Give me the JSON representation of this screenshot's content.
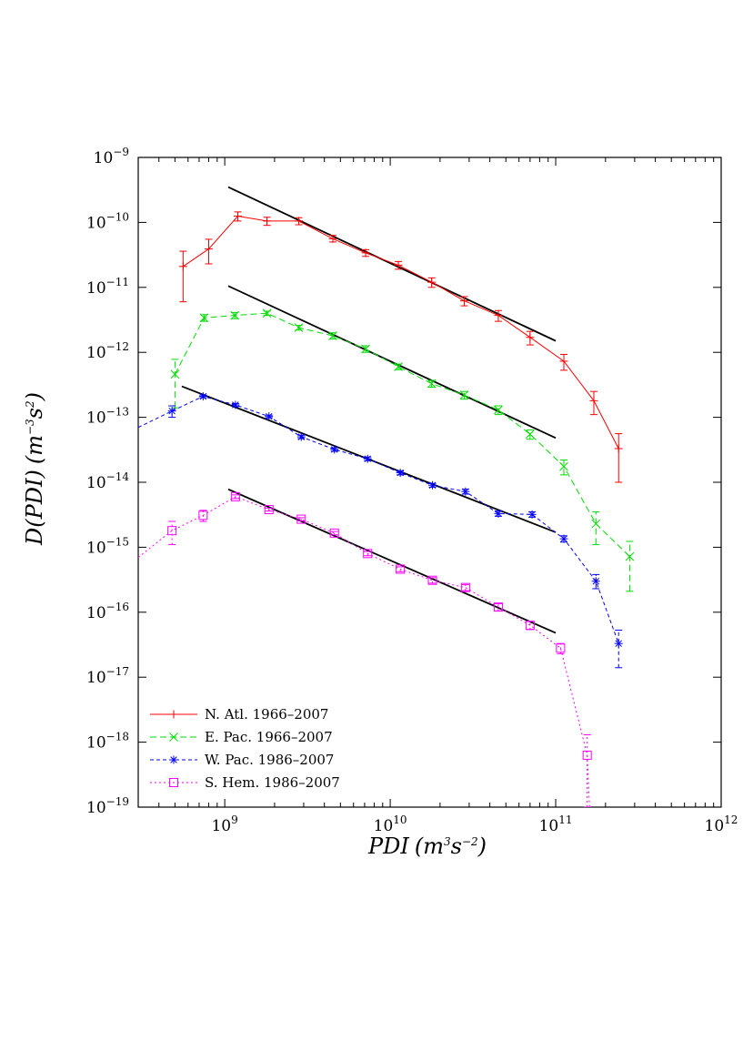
{
  "chart_data": {
    "type": "scatter",
    "title": "",
    "xlabel": {
      "base": "PDI",
      "unit_open": "(m",
      "unit_exp1": "3",
      "unit_mid": "s",
      "unit_exp2": "−2",
      "unit_close": ")"
    },
    "ylabel": {
      "base": "D(PDI)",
      "unit_open": "(m",
      "unit_exp1": "−3",
      "unit_mid": "s",
      "unit_exp2": "2",
      "unit_close": ")"
    },
    "x_scale": "log",
    "y_scale": "log",
    "xlim": [
      300000000.0,
      1000000000000.0
    ],
    "ylim": [
      1e-19,
      1e-09
    ],
    "x_ticks": [
      {
        "value": 1000000000.0,
        "base": "10",
        "exp": "9"
      },
      {
        "value": 10000000000.0,
        "base": "10",
        "exp": "10"
      },
      {
        "value": 100000000000.0,
        "base": "10",
        "exp": "11"
      },
      {
        "value": 1000000000000.0,
        "base": "10",
        "exp": "12"
      }
    ],
    "y_ticks": [
      {
        "value": 1e-09,
        "base": "10",
        "exp": "−9"
      },
      {
        "value": 1e-10,
        "base": "10",
        "exp": "−10"
      },
      {
        "value": 1e-11,
        "base": "10",
        "exp": "−11"
      },
      {
        "value": 1e-12,
        "base": "10",
        "exp": "−12"
      },
      {
        "value": 1e-13,
        "base": "10",
        "exp": "−13"
      },
      {
        "value": 1e-14,
        "base": "10",
        "exp": "−14"
      },
      {
        "value": 1e-15,
        "base": "10",
        "exp": "−15"
      },
      {
        "value": 1e-16,
        "base": "10",
        "exp": "−16"
      },
      {
        "value": 1e-17,
        "base": "10",
        "exp": "−17"
      },
      {
        "value": 1e-18,
        "base": "10",
        "exp": "−18"
      },
      {
        "value": 1e-19,
        "base": "10",
        "exp": "−19"
      }
    ],
    "legend_position": "bottom-left",
    "grid": false,
    "series": [
      {
        "name": "N. Atl. 1966–2007",
        "color": "#ff0000",
        "marker": "plus",
        "dash": "",
        "x": [
          560000000.0,
          800000000.0,
          1200000000.0,
          1800000000.0,
          2800000000.0,
          4500000000.0,
          7100000000.0,
          11200000000.0,
          17800000000.0,
          28000000000.0,
          45000000000.0,
          70000000000.0,
          112000000000.0,
          170000000000.0,
          240000000000.0
        ],
        "y": [
          2.1e-11,
          3.9e-11,
          1.25e-10,
          1.05e-10,
          1.05e-10,
          5.6e-11,
          3.4e-11,
          2.2e-11,
          1.2e-11,
          6.2e-12,
          3.7e-12,
          1.7e-12,
          7.3e-13,
          1.8e-13,
          3.3e-14
        ],
        "err_lo": [
          6e-12,
          2.3e-11,
          1.05e-10,
          9e-11,
          9.2e-11,
          5e-11,
          3e-11,
          1.9e-11,
          1e-11,
          5.2e-12,
          3e-12,
          1.3e-12,
          5.3e-13,
          1.1e-13,
          1e-14
        ],
        "err_hi": [
          3.6e-11,
          5.5e-11,
          1.45e-10,
          1.2e-10,
          1.18e-10,
          6.3e-11,
          3.8e-11,
          2.5e-11,
          1.4e-11,
          7.2e-12,
          4.4e-12,
          2.1e-12,
          9.3e-13,
          2.5e-13,
          5.6e-14
        ]
      },
      {
        "name": "E. Pac. 1966–2007",
        "color": "#00dd00",
        "marker": "cross",
        "dash": "7,4",
        "x": [
          500000000.0,
          750000000.0,
          1150000000.0,
          1800000000.0,
          2800000000.0,
          4500000000.0,
          7100000000.0,
          11200000000.0,
          17800000000.0,
          28000000000.0,
          45000000000.0,
          70000000000.0,
          112000000000.0,
          175000000000.0,
          280000000000.0
        ],
        "y": [
          4.6e-13,
          3.4e-12,
          3.7e-12,
          4e-12,
          2.4e-12,
          1.8e-12,
          1.13e-12,
          6e-13,
          3.3e-13,
          2.2e-13,
          1.3e-13,
          5.5e-14,
          1.75e-14,
          2.3e-15,
          7.2e-16
        ],
        "err_lo": [
          1.4e-13,
          3e-12,
          3.3e-12,
          3.7e-12,
          2.2e-12,
          1.6e-12,
          1e-12,
          5.4e-13,
          2.9e-13,
          1.9e-13,
          1.1e-13,
          4.6e-14,
          1.3e-14,
          1.1e-15,
          2.1e-16
        ],
        "err_hi": [
          7.8e-13,
          3.8e-12,
          4.1e-12,
          4.3e-12,
          2.6e-12,
          2e-12,
          1.26e-12,
          6.6e-13,
          3.7e-13,
          2.5e-13,
          1.5e-13,
          6.4e-14,
          2.2e-14,
          3.5e-15,
          1.23e-15
        ]
      },
      {
        "name": "W. Pac. 1986–2007",
        "color": "#0000ff",
        "marker": "star",
        "dash": "4,3",
        "x": [
          300000000.0,
          480000000.0,
          740000000.0,
          1160000000.0,
          1850000000.0,
          2900000000.0,
          4600000000.0,
          7300000000.0,
          11500000000.0,
          18000000000.0,
          28500000000.0,
          45000000000.0,
          72000000000.0,
          112000000000.0,
          175000000000.0,
          240000000000.0
        ],
        "y": [
          7e-14,
          1.25e-13,
          2.1e-13,
          1.55e-13,
          1.03e-13,
          5e-14,
          3.2e-14,
          2.3e-14,
          1.4e-14,
          9e-15,
          7.2e-15,
          3.3e-15,
          3.2e-15,
          1.35e-15,
          3e-16,
          3.3e-17
        ],
        "err_lo": [
          null,
          1e-13,
          2e-13,
          1.47e-13,
          9.8e-14,
          4.7e-14,
          3e-14,
          2.15e-14,
          1.3e-14,
          8.4e-15,
          6.6e-15,
          3e-15,
          2.9e-15,
          1.2e-15,
          2.3e-16,
          1.4e-17
        ],
        "err_hi": [
          null,
          1.5e-13,
          2.2e-13,
          1.63e-13,
          1.08e-13,
          5.3e-14,
          3.4e-14,
          2.45e-14,
          1.5e-14,
          9.6e-15,
          7.8e-15,
          3.6e-15,
          3.5e-15,
          1.5e-15,
          3.8e-16,
          5.3e-17
        ]
      },
      {
        "name": "S. Hem. 1986–2007",
        "color": "#ff00ff",
        "marker": "square",
        "dash": "2,3",
        "x": [
          300000000.0,
          480000000.0,
          740000000.0,
          1160000000.0,
          1850000000.0,
          2900000000.0,
          4600000000.0,
          7300000000.0,
          11500000000.0,
          18000000000.0,
          28500000000.0,
          45000000000.0,
          70000000000.0,
          107000000000.0,
          155000000000.0,
          160000000000.0
        ],
        "y": [
          7e-16,
          1.8e-15,
          3.1e-15,
          6e-15,
          3.8e-15,
          2.7e-15,
          1.65e-15,
          8e-16,
          4.6e-16,
          3.1e-16,
          2.4e-16,
          1.2e-16,
          6.3e-17,
          2.8e-17,
          6.3e-19,
          1e-19
        ],
        "err_lo": [
          null,
          1.1e-15,
          2.5e-15,
          5.6e-15,
          3.6e-15,
          2.55e-15,
          1.55e-15,
          7.4e-16,
          4.2e-16,
          2.8e-16,
          2.15e-16,
          1.05e-16,
          5.4e-17,
          2.3e-17,
          1e-19,
          null
        ],
        "err_hi": [
          null,
          2.5e-15,
          3.7e-15,
          6.4e-15,
          4e-15,
          2.85e-15,
          1.75e-15,
          8.6e-16,
          5e-16,
          3.4e-16,
          2.65e-16,
          1.35e-16,
          7.2e-17,
          3.3e-17,
          1.3e-18,
          null
        ]
      }
    ],
    "fit_lines": [
      {
        "x": [
          1050000000.0,
          100000000000.0
        ],
        "y": [
          3.5e-10,
          1.5e-12
        ],
        "color": "#000000"
      },
      {
        "x": [
          1050000000.0,
          100000000000.0
        ],
        "y": [
          1.05e-11,
          4.8e-14
        ],
        "color": "#000000"
      },
      {
        "x": [
          550000000.0,
          100000000000.0
        ],
        "y": [
          3e-13,
          1.7e-15
        ],
        "color": "#000000"
      },
      {
        "x": [
          1050000000.0,
          100000000000.0
        ],
        "y": [
          7.8e-15,
          4.8e-17
        ],
        "color": "#000000"
      }
    ]
  }
}
